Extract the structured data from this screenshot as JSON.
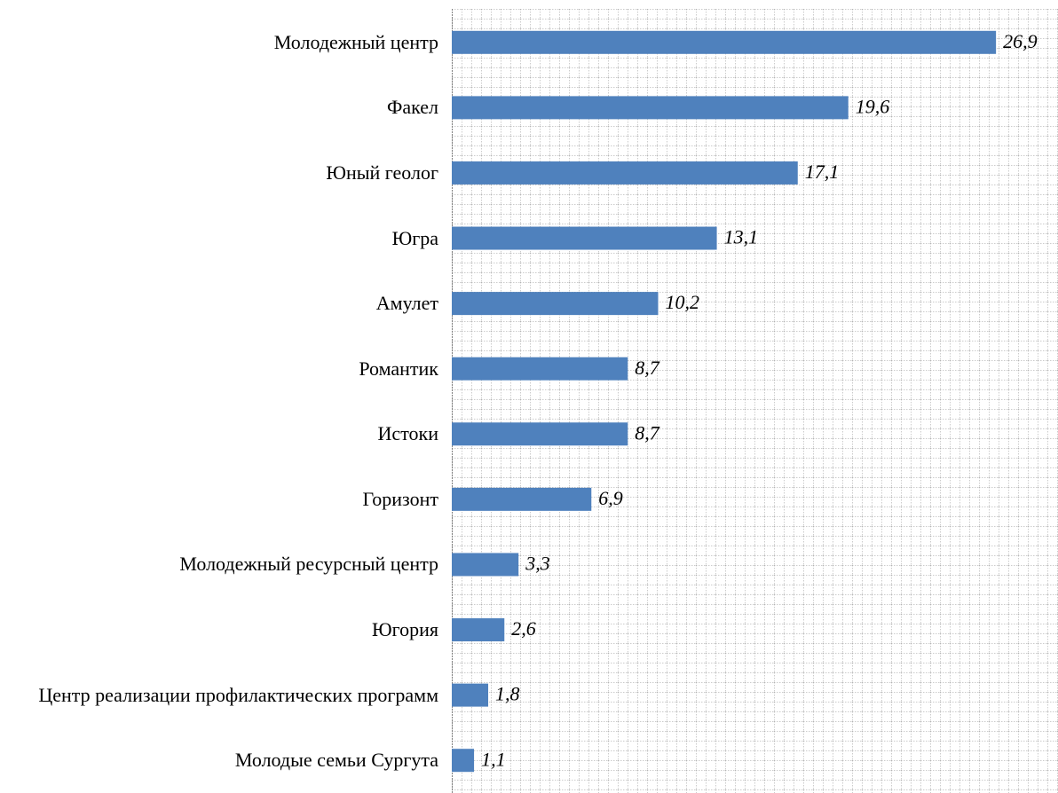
{
  "chart_data": {
    "type": "barh",
    "categories": [
      "Молодежный центр",
      "Факел",
      "Юный геолог",
      "Югра",
      "Амулет",
      "Романтик",
      "Истоки",
      "Горизонт",
      "Молодежный ресурсный центр",
      "Югория",
      "Центр реализации профилактических программ",
      "Молодые семьи Сургута"
    ],
    "values": [
      26.9,
      19.6,
      17.1,
      13.1,
      10.2,
      8.7,
      8.7,
      6.9,
      3.3,
      2.6,
      1.8,
      1.1
    ],
    "value_labels": [
      "26,9",
      "19,6",
      "17,1",
      "13,1",
      "10,2",
      "8,7",
      "8,7",
      "6,9",
      "3,3",
      "2,6",
      "1,8",
      "1,1"
    ],
    "color": "#4f81bd",
    "xlim": [
      0,
      29
    ],
    "grid": true
  }
}
